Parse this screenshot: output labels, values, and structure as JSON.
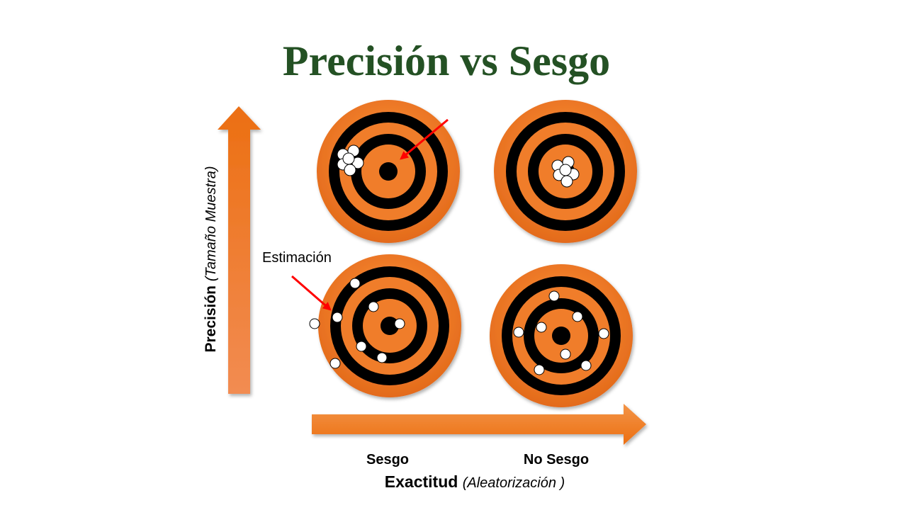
{
  "title": "Precisión vs Sesgo",
  "y_axis": {
    "label": "Precisión",
    "sublabel": "(Tamaño Muestra)"
  },
  "x_axis": {
    "label": "Exactitud",
    "sublabel": "(Aleatorización )",
    "columns": [
      "Sesgo",
      "No Sesgo"
    ]
  },
  "annotation": {
    "text": "Estimación"
  },
  "colors": {
    "title": "#245124",
    "target_orange": "#f07d2a",
    "target_black": "#000000",
    "arrow_orange": "#f07c22",
    "pointer_red": "#ff0000"
  },
  "targets": [
    {
      "id": "precise-biased",
      "precision": "high",
      "bias": "biased",
      "shot_count": 7
    },
    {
      "id": "precise-unbiased",
      "precision": "high",
      "bias": "unbiased",
      "shot_count": 7
    },
    {
      "id": "imprecise-biased",
      "precision": "low",
      "bias": "biased",
      "shot_count": 8
    },
    {
      "id": "imprecise-unbiased",
      "precision": "low",
      "bias": "unbiased",
      "shot_count": 9
    }
  ]
}
